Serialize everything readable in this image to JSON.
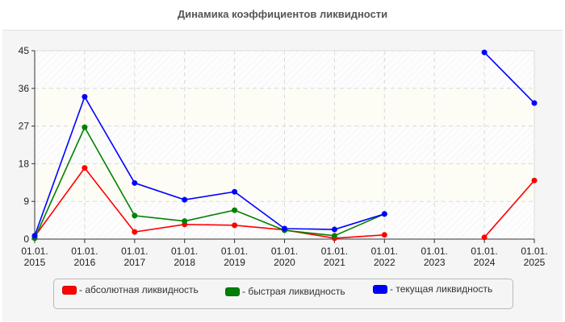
{
  "title": "Динамика коэффициентов ликвидности",
  "legend": [
    {
      "label": "- абсолютная ликвидность",
      "color": "#ff0000"
    },
    {
      "label": "- быстрая ликвидность",
      "color": "#008000"
    },
    {
      "label": "- текущая ликвидность",
      "color": "#0000ff"
    }
  ],
  "chart_data": {
    "type": "line",
    "title": "Динамика коэффициентов ликвидности",
    "xlabel": "",
    "ylabel": "",
    "categories": [
      "01.01.2015",
      "01.01.2016",
      "01.01.2017",
      "01.01.2018",
      "01.01.2019",
      "01.01.2020",
      "01.01.2021",
      "01.01.2022",
      "01.01.2023",
      "01.01.2024",
      "01.01.2025"
    ],
    "x_tick_labels": [
      [
        "01.01.",
        "2015"
      ],
      [
        "01.01.",
        "2016"
      ],
      [
        "01.01.",
        "2017"
      ],
      [
        "01.01.",
        "2018"
      ],
      [
        "01.01.",
        "2019"
      ],
      [
        "01.01.",
        "2020"
      ],
      [
        "01.01.",
        "2021"
      ],
      [
        "01.01.",
        "2022"
      ],
      [
        "01.01.",
        "2023"
      ],
      [
        "01.01.",
        "2024"
      ],
      [
        "01.01.",
        "2025"
      ]
    ],
    "y_ticks": [
      0,
      9,
      18,
      27,
      36,
      45
    ],
    "ylim": [
      0,
      45
    ],
    "grid": true,
    "legend_position": "bottom",
    "series": [
      {
        "name": "абсолютная ликвидность",
        "color": "#ff0000",
        "values": [
          0.6,
          17.0,
          1.7,
          3.5,
          3.3,
          2.2,
          0.2,
          1.0,
          null,
          0.4,
          14.0
        ]
      },
      {
        "name": "быстрая ликвидность",
        "color": "#008000",
        "values": [
          0.2,
          26.7,
          5.6,
          4.3,
          6.9,
          2.1,
          0.8,
          6.0,
          null,
          null,
          null
        ]
      },
      {
        "name": "текущая ликвидность",
        "color": "#0000ff",
        "values": [
          0.8,
          34.0,
          13.4,
          9.4,
          11.3,
          2.5,
          2.3,
          6.0,
          null,
          44.6,
          32.5
        ]
      }
    ]
  }
}
